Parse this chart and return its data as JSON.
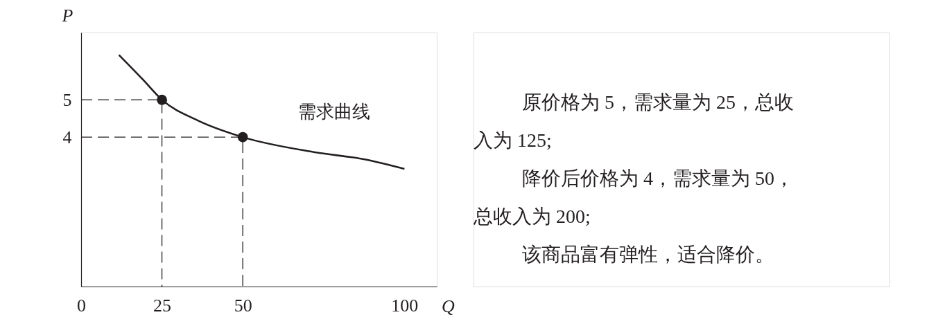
{
  "chart_data": {
    "type": "line",
    "xlabel": "Q",
    "ylabel": "P",
    "xlim": [
      0,
      110
    ],
    "ylim": [
      0,
      6.8
    ],
    "xticks": [
      0,
      25,
      50,
      100
    ],
    "yticks": [
      4,
      5
    ],
    "series": [
      {
        "name": "需求曲线",
        "color": "#231f20",
        "line_style": "solid",
        "x": [
          11.7,
          19,
          25,
          36,
          50,
          72,
          88,
          100
        ],
        "values": [
          6.2,
          5.55,
          5,
          4.45,
          4,
          3.6,
          3.4,
          3.15
        ]
      },
      {
        "type": "scatter",
        "color": "#231f20",
        "marker": "circle",
        "x": [
          25,
          50
        ],
        "values": [
          5,
          4
        ]
      },
      {
        "type": "line",
        "color": "#231f20",
        "line_style": "dashed",
        "x": [
          0,
          25,
          25
        ],
        "values": [
          5,
          5,
          0
        ]
      },
      {
        "type": "line",
        "color": "#231f20",
        "line_style": "dashed",
        "x": [
          0,
          50,
          50
        ],
        "values": [
          4,
          4,
          0
        ]
      }
    ],
    "annotations": [
      "原价格为 5，需求量为 25，总收入为 125;",
      "降价后价格为 4，需求量为 50，总收入为 200;",
      "该商品富有弹性，适合降价。"
    ]
  }
}
